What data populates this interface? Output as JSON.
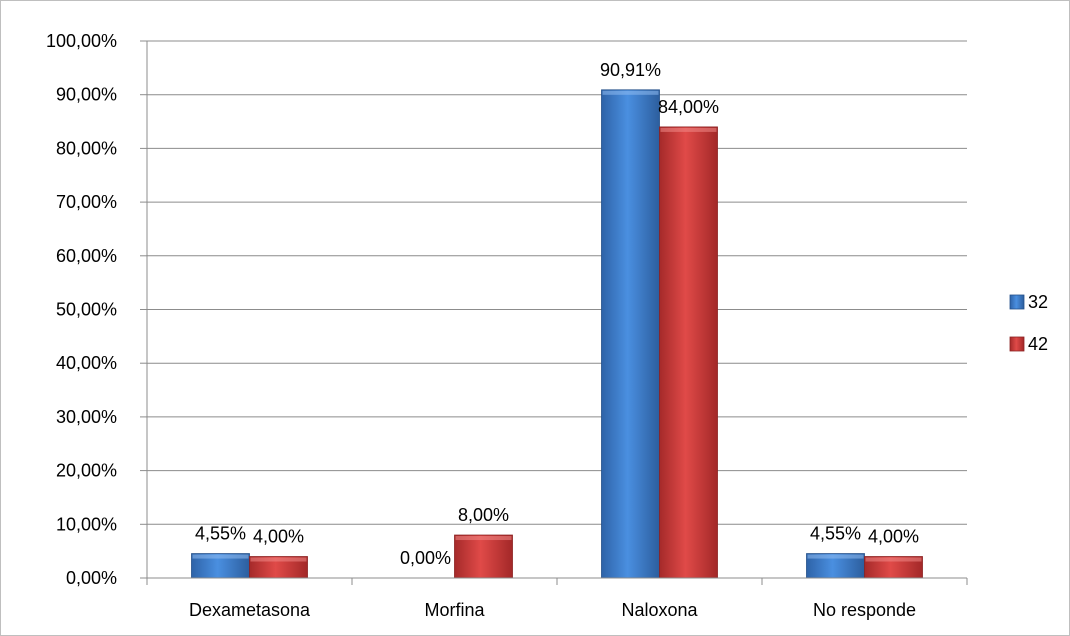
{
  "chart_data": {
    "type": "bar",
    "categories": [
      "Dexametasona",
      "Morfina",
      "Naloxona",
      "No responde"
    ],
    "series": [
      {
        "name": "32",
        "values": [
          4.55,
          0.0,
          90.91,
          4.55
        ],
        "labels": [
          "4,55%",
          "0,00%",
          "90,91%",
          "4,55%"
        ],
        "color": "#3c7fd4"
      },
      {
        "name": "42",
        "values": [
          4.0,
          8.0,
          84.0,
          4.0
        ],
        "labels": [
          "4,00%",
          "8,00%",
          "84,00%",
          "4,00%"
        ],
        "color": "#d23c3c"
      }
    ],
    "ylim": [
      0,
      100
    ],
    "y_ticks": [
      0,
      10,
      20,
      30,
      40,
      50,
      60,
      70,
      80,
      90,
      100
    ],
    "y_tick_labels": [
      "0,00%",
      "10,00%",
      "20,00%",
      "30,00%",
      "40,00%",
      "50,00%",
      "60,00%",
      "70,00%",
      "80,00%",
      "90,00%",
      "100,00%"
    ],
    "grid": true,
    "legend_position": "right"
  }
}
